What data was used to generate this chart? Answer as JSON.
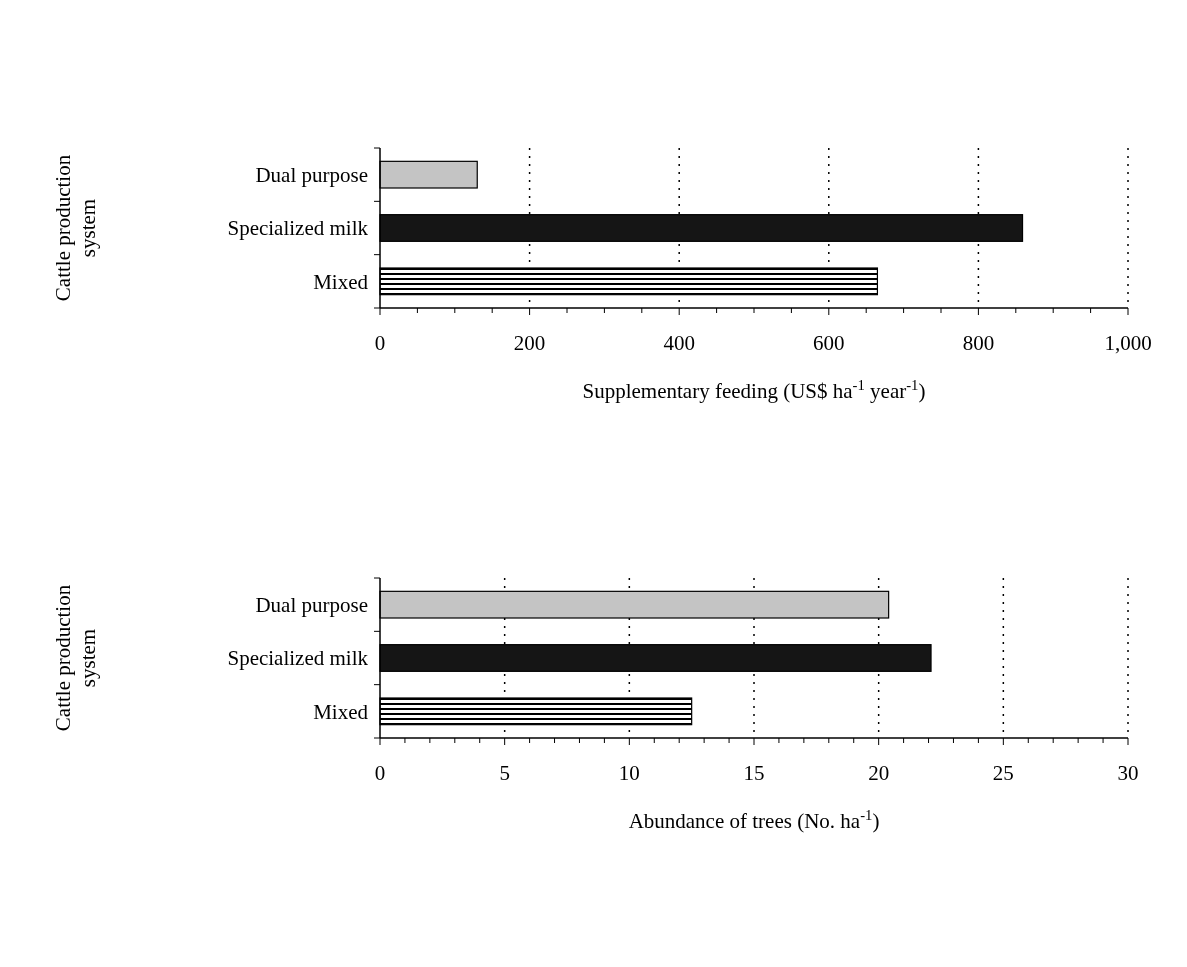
{
  "chart_data": [
    {
      "type": "bar",
      "orientation": "horizontal",
      "categories": [
        "Dual purpose",
        "Specialized milk",
        "Mixed"
      ],
      "values": [
        130,
        859,
        665
      ],
      "colors": [
        "#c4c4c4",
        "#151515",
        "#000000"
      ],
      "xlim": [
        0,
        1000
      ],
      "xticks": [
        0,
        {
          "value": 50,
          "label": null
        },
        {
          "value": 100,
          "label": null
        },
        {
          "value": 150,
          "label": null
        },
        200,
        {
          "value": 250,
          "label": null
        },
        {
          "value": 300,
          "label": null
        },
        {
          "value": 350,
          "label": null
        },
        400,
        {
          "value": 450,
          "label": null
        },
        {
          "value": 500,
          "label": null
        },
        {
          "value": 550,
          "label": null
        },
        600,
        {
          "value": 650,
          "label": null
        },
        {
          "value": 700,
          "label": null
        },
        {
          "value": 750,
          "label": null
        },
        800,
        {
          "value": 850,
          "label": null
        },
        {
          "value": 900,
          "label": null
        },
        {
          "value": 950,
          "label": null
        },
        {
          "value": 1000,
          "label": "1,000"
        }
      ],
      "xlabel": "Supplementary feeding (US$ ha$^{-1}$ year$^{-1}$)",
      "ylabel": "Cattle production system",
      "grid": "x"
    },
    {
      "type": "bar",
      "orientation": "horizontal",
      "categories": [
        "Dual purpose",
        "Specialized milk",
        "Mixed"
      ],
      "values": [
        20.4,
        22.1,
        12.5
      ],
      "colors": [
        "#c4c4c4",
        "#151515",
        "#000000"
      ],
      "xlim": [
        0,
        30
      ],
      "xticks": [
        0,
        {
          "value": 1,
          "label": null
        },
        {
          "value": 2,
          "label": null
        },
        {
          "value": 3,
          "label": null
        },
        {
          "value": 4,
          "label": null
        },
        5,
        {
          "value": 6,
          "label": null
        },
        {
          "value": 7,
          "label": null
        },
        {
          "value": 8,
          "label": null
        },
        {
          "value": 9,
          "label": null
        },
        10,
        {
          "value": 11,
          "label": null
        },
        {
          "value": 12,
          "label": null
        },
        {
          "value": 13,
          "label": null
        },
        {
          "value": 14,
          "label": null
        },
        15,
        {
          "value": 16,
          "label": null
        },
        {
          "value": 17,
          "label": null
        },
        {
          "value": 18,
          "label": null
        },
        {
          "value": 19,
          "label": null
        },
        20,
        {
          "value": 21,
          "label": null
        },
        {
          "value": 22,
          "label": null
        },
        {
          "value": 23,
          "label": null
        },
        {
          "value": 24,
          "label": null
        },
        25,
        {
          "value": 26,
          "label": null
        },
        {
          "value": 27,
          "label": null
        },
        {
          "value": 28,
          "label": null
        },
        {
          "value": 29,
          "label": null
        },
        30
      ],
      "xlabel": "Abundance of trees (No. ha$^{-1}$)",
      "ylabel": "Cattle production system",
      "grid": "x"
    }
  ]
}
